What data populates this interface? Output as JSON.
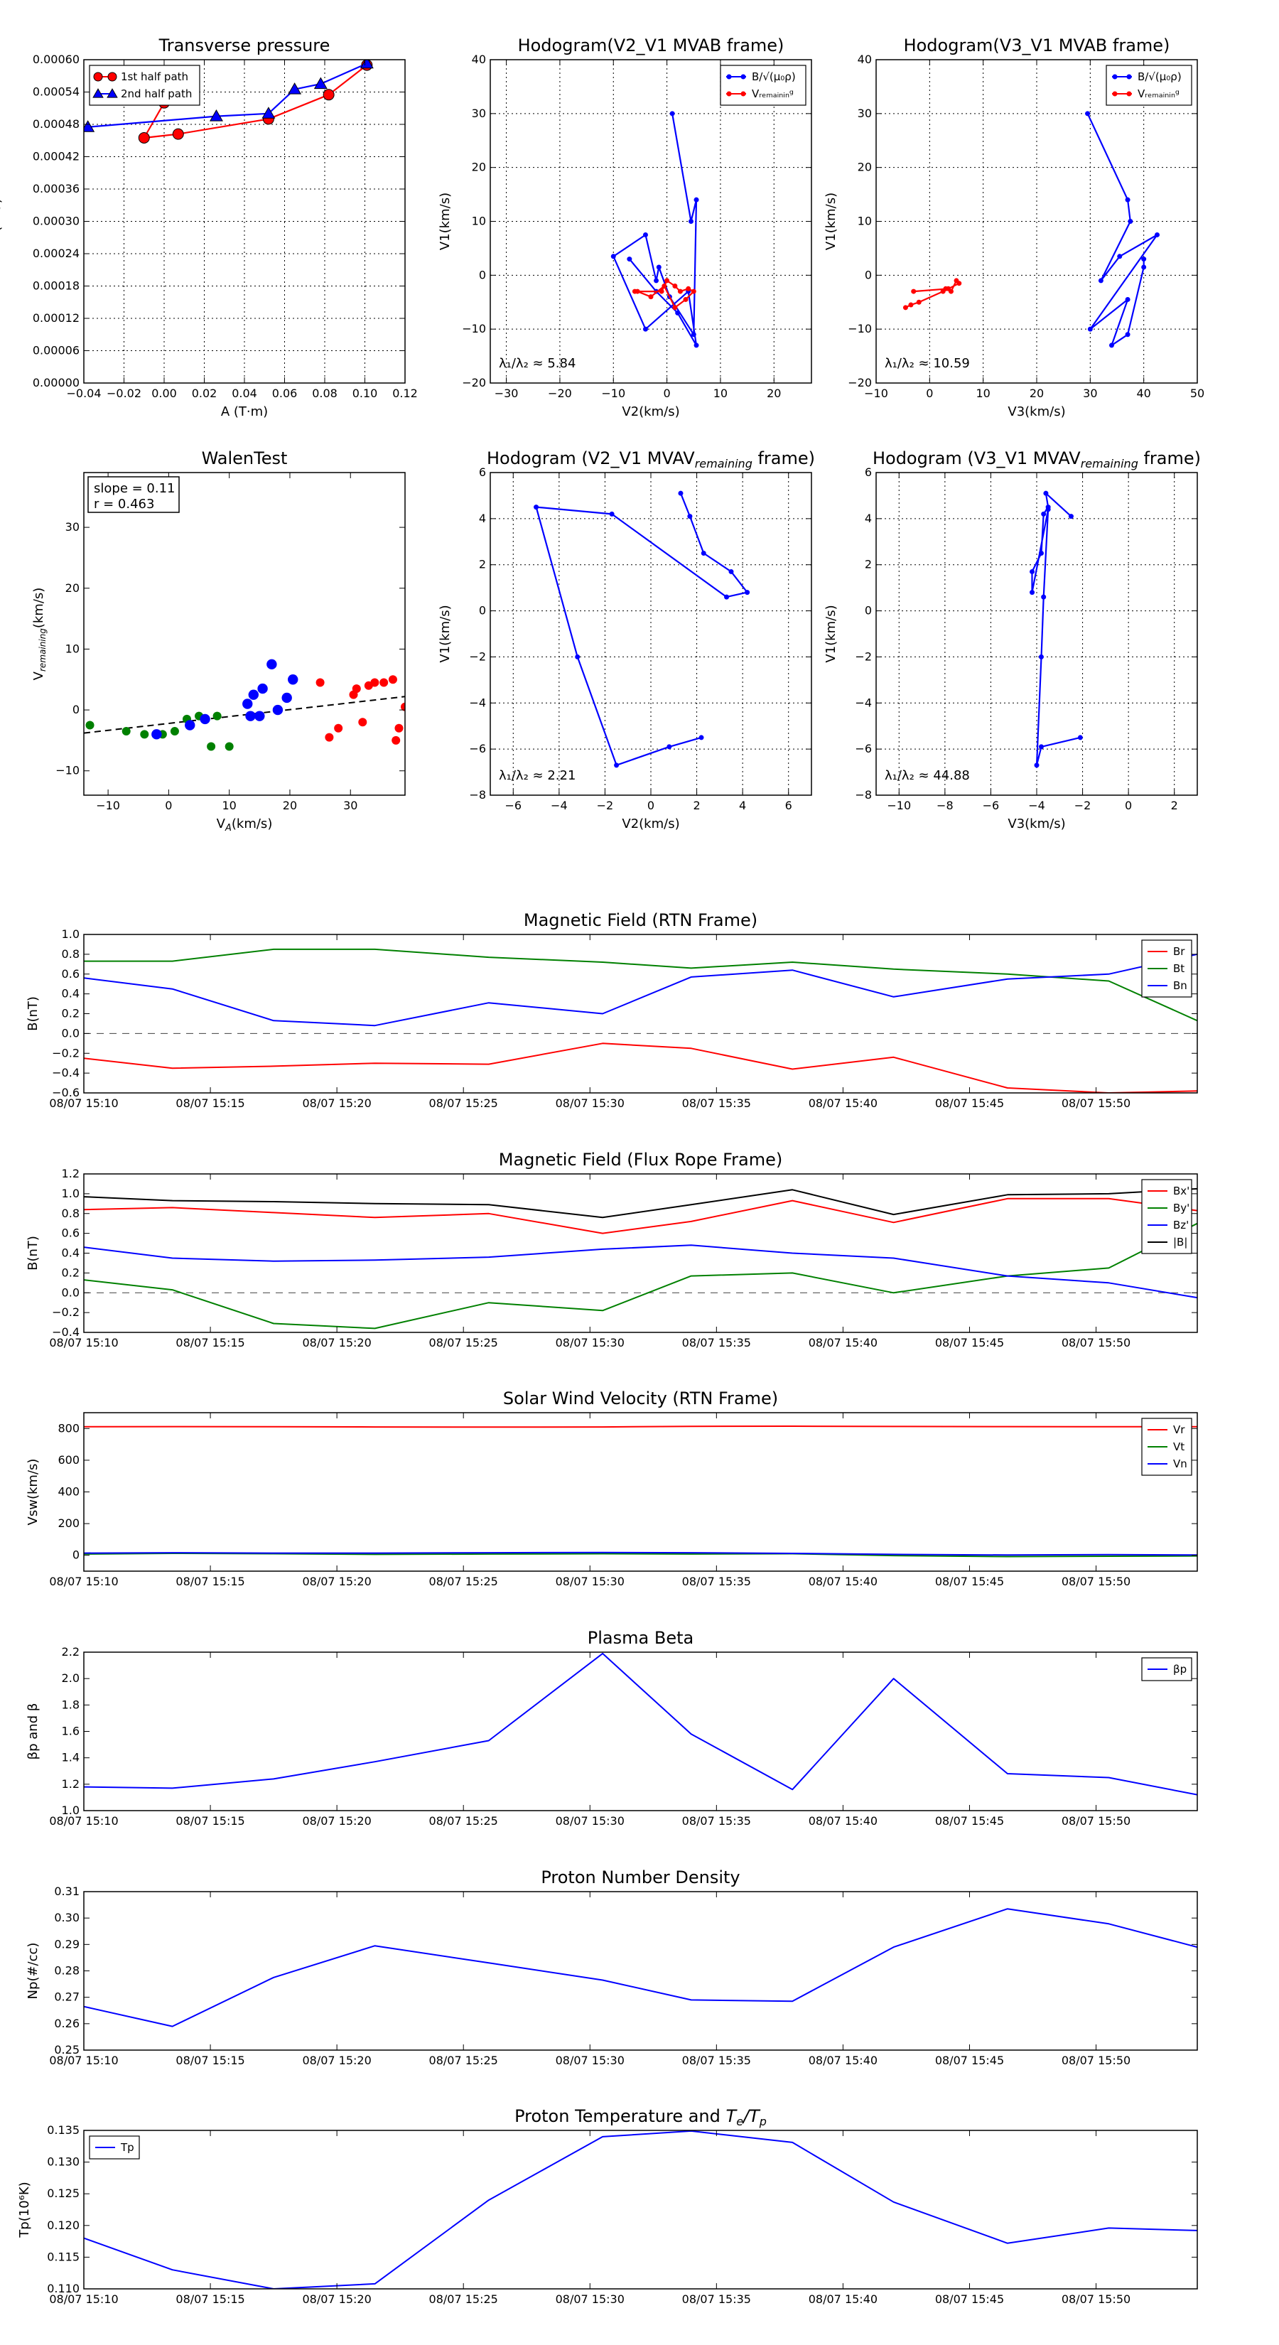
{
  "chart_data": [
    {
      "id": "transverse-pressure",
      "type": "line",
      "title": "Transverse pressure",
      "xlabel": "A (T·m)",
      "ylabel": "Pt(nPa)",
      "xlim": [
        -0.04,
        0.12
      ],
      "ylim": [
        0,
        0.0006
      ],
      "xticks": [
        -0.04,
        -0.02,
        0.0,
        0.02,
        0.04,
        0.06,
        0.08,
        0.1,
        0.12
      ],
      "xtick_labels": [
        "−0.04",
        "−0.02",
        "0.00",
        "0.02",
        "0.04",
        "0.06",
        "0.08",
        "0.10",
        "0.12"
      ],
      "yticks": [
        0,
        6e-05,
        0.00012,
        0.00018,
        0.00024,
        0.0003,
        0.00036,
        0.00042,
        0.00048,
        0.00054,
        0.0006
      ],
      "ytick_labels": [
        "0.00000",
        "0.00006",
        "0.00012",
        "0.00018",
        "0.00024",
        "0.00030",
        "0.00036",
        "0.00042",
        "0.00048",
        "0.00054",
        "0.00060"
      ],
      "grid": true,
      "legend": "top-left",
      "series": [
        {
          "name": "1st half path",
          "color": "#ff0000",
          "marker": "circle",
          "x": [
            0.0,
            -0.01,
            0.007,
            0.052,
            0.082,
            0.101
          ],
          "y": [
            0.00052,
            0.000455,
            0.000462,
            0.00049,
            0.000535,
            0.00059
          ]
        },
        {
          "name": "2nd half path",
          "color": "#0000ff",
          "marker": "triangle",
          "x": [
            0.101,
            0.078,
            0.065,
            0.052,
            0.026,
            -0.038
          ],
          "y": [
            0.000593,
            0.000555,
            0.000545,
            0.0005,
            0.000495,
            0.000475
          ]
        }
      ]
    },
    {
      "id": "hodogram-v2-v1-mvab",
      "type": "line",
      "title": "Hodogram(V2_V1 MVAB frame)",
      "xlabel": "V2(km/s)",
      "ylabel": "V1(km/s)",
      "xlim": [
        -33,
        27
      ],
      "ylim": [
        -20,
        40
      ],
      "xticks": [
        -30,
        -20,
        -10,
        0,
        10,
        20
      ],
      "xtick_labels": [
        "−30",
        "−20",
        "−10",
        "0",
        "10",
        "20"
      ],
      "yticks": [
        -20,
        -10,
        0,
        10,
        20,
        30,
        40
      ],
      "ytick_labels": [
        "−20",
        "−10",
        "0",
        "10",
        "20",
        "30",
        "40"
      ],
      "grid": true,
      "legend": "top-right",
      "annotation": "λ₁/λ₂ ≈ 5.84",
      "series": [
        {
          "name": "B/√(μ₀ρ)",
          "color": "#0000ff",
          "x": [
            1.0,
            4.5,
            5.5,
            5.0,
            0.5,
            -1.5,
            -2.0,
            -4.0,
            -10.0,
            -4.0,
            4.0,
            5.5,
            2.0,
            -2.0,
            -7.0
          ],
          "y": [
            30.0,
            10.0,
            14.0,
            -11.0,
            -4.0,
            1.5,
            -1.0,
            7.5,
            3.5,
            -10.0,
            -3.0,
            -13.0,
            -7.0,
            -3.0,
            3.0
          ]
        },
        {
          "name": "Vᵣₑₘₐᵢₙᵢₙᵍ",
          "color": "#ff0000",
          "x": [
            -6.0,
            -1.0,
            0.0,
            1.5,
            2.5,
            4.0,
            5.0,
            3.5,
            1.5,
            -0.5,
            -3.0,
            -5.5
          ],
          "y": [
            -3.0,
            -3.0,
            -1.0,
            -2.0,
            -3.0,
            -2.5,
            -3.0,
            -4.5,
            -6.0,
            -2.0,
            -4.0,
            -3.0
          ]
        }
      ]
    },
    {
      "id": "hodogram-v3-v1-mvab",
      "type": "line",
      "title": "Hodogram(V3_V1 MVAB frame)",
      "xlabel": "V3(km/s)",
      "ylabel": "V1(km/s)",
      "xlim": [
        -10,
        50
      ],
      "ylim": [
        -20,
        40
      ],
      "xticks": [
        -10,
        0,
        10,
        20,
        30,
        40,
        50
      ],
      "xtick_labels": [
        "−10",
        "0",
        "10",
        "20",
        "30",
        "40",
        "50"
      ],
      "yticks": [
        -20,
        -10,
        0,
        10,
        20,
        30,
        40
      ],
      "ytick_labels": [
        "−20",
        "−10",
        "0",
        "10",
        "20",
        "30",
        "40"
      ],
      "grid": true,
      "legend": "top-right",
      "annotation": "λ₁/λ₂ ≈ 10.59",
      "series": [
        {
          "name": "B/√(μ₀ρ)",
          "color": "#0000ff",
          "x": [
            29.5,
            37.0,
            37.5,
            32.0,
            35.5,
            42.5,
            30.0,
            37.0,
            34.0,
            37.0,
            40.0,
            40.0
          ],
          "y": [
            30.0,
            14.0,
            10.0,
            -1.0,
            3.5,
            7.5,
            -10.0,
            -4.5,
            -13.0,
            -11.0,
            1.5,
            3.0
          ]
        },
        {
          "name": "Vᵣₑₘₐᵢₙᵢₙᵍ",
          "color": "#ff0000",
          "x": [
            -4.5,
            -3.5,
            -2.0,
            2.5,
            3.0,
            4.0,
            5.0,
            5.5,
            3.5,
            -3.0
          ],
          "y": [
            -6.0,
            -5.5,
            -5.0,
            -3.0,
            -2.5,
            -3.0,
            -1.0,
            -1.5,
            -2.5,
            -3.0
          ]
        }
      ]
    },
    {
      "id": "walen-test",
      "type": "scatter",
      "title": "WalenTest",
      "xlabel": "V_A(km/s)",
      "ylabel": "V_remaining(km/s)",
      "xlim": [
        -14,
        39
      ],
      "ylim": [
        -14,
        39
      ],
      "xticks": [
        -10,
        0,
        10,
        20,
        30
      ],
      "xtick_labels": [
        "−10",
        "0",
        "10",
        "20",
        "30"
      ],
      "yticks": [
        -10,
        0,
        10,
        20,
        30
      ],
      "ytick_labels": [
        "−10",
        "0",
        "10",
        "20",
        "30"
      ],
      "grid": false,
      "legend": "top-left",
      "legend_text": [
        "slope = 0.11",
        "r = 0.463"
      ],
      "fit_line": {
        "x": [
          -14,
          39
        ],
        "y": [
          -3.8,
          2.2
        ]
      },
      "series": [
        {
          "color": "#008000",
          "x": [
            -13.0,
            -7.0,
            -4.0,
            -1.0,
            1.0,
            3.0,
            5.0,
            6.0,
            7.0,
            8.0,
            10.0
          ],
          "y": [
            -2.5,
            -3.5,
            -4.0,
            -4.0,
            -3.5,
            -1.5,
            -1.0,
            -1.5,
            -6.0,
            -1.0,
            -6.0
          ]
        },
        {
          "color": "#0000ff",
          "x": [
            -2.0,
            3.5,
            6.0,
            13.0,
            13.5,
            14.0,
            15.0,
            15.5,
            17.0,
            18.0,
            19.5,
            20.5
          ],
          "y": [
            -4.0,
            -2.5,
            -1.5,
            1.0,
            -1.0,
            2.5,
            -1.0,
            3.5,
            7.5,
            0.0,
            2.0,
            5.0
          ],
          "size_scale": 1.2
        },
        {
          "color": "#ff0000",
          "x": [
            25.0,
            26.5,
            28.0,
            30.5,
            31.0,
            32.0,
            33.0,
            34.0,
            35.5,
            37.0,
            37.5,
            38.0,
            39.0
          ],
          "y": [
            4.5,
            -4.5,
            -3.0,
            2.5,
            3.5,
            -2.0,
            4.0,
            4.5,
            4.5,
            5.0,
            -5.0,
            -3.0,
            0.5
          ]
        }
      ]
    },
    {
      "id": "hodogram-v2-v1-mvav",
      "type": "line",
      "title": "Hodogram (V2_V1 MVAV_remaining frame)",
      "xlabel": "V2(km/s)",
      "ylabel": "V1(km/s)",
      "xlim": [
        -7,
        7
      ],
      "ylim": [
        -8,
        6
      ],
      "xticks": [
        -6,
        -4,
        -2,
        0,
        2,
        4,
        6
      ],
      "xtick_labels": [
        "−6",
        "−4",
        "−2",
        "0",
        "2",
        "4",
        "6"
      ],
      "yticks": [
        -8,
        -6,
        -4,
        -2,
        0,
        2,
        4,
        6
      ],
      "ytick_labels": [
        "−8",
        "−6",
        "−4",
        "−2",
        "0",
        "2",
        "4",
        "6"
      ],
      "grid": true,
      "annotation": "λ₁/λ₂ ≈ 2.21",
      "series": [
        {
          "color": "#0000ff",
          "x": [
            1.3,
            1.7,
            2.3,
            3.5,
            4.2,
            3.3,
            -1.7,
            -5.0,
            -3.2,
            -1.5,
            0.8,
            2.2
          ],
          "y": [
            5.1,
            4.1,
            2.5,
            1.7,
            0.8,
            0.6,
            4.2,
            4.5,
            -2.0,
            -6.7,
            -5.9,
            -5.5
          ]
        }
      ]
    },
    {
      "id": "hodogram-v3-v1-mvav",
      "type": "line",
      "title": "Hodogram (V3_V1 MVAV_remaining frame)",
      "xlabel": "V3(km/s)",
      "ylabel": "V1(km/s)",
      "xlim": [
        -11,
        3
      ],
      "ylim": [
        -8,
        6
      ],
      "xticks": [
        -10,
        -8,
        -6,
        -4,
        -2,
        0,
        2
      ],
      "xtick_labels": [
        "−10",
        "−8",
        "−6",
        "−4",
        "−2",
        "0",
        "2"
      ],
      "yticks": [
        -8,
        -6,
        -4,
        -2,
        0,
        2,
        4,
        6
      ],
      "ytick_labels": [
        "−8",
        "−6",
        "−4",
        "−2",
        "0",
        "2",
        "4",
        "6"
      ],
      "grid": true,
      "annotation": "λ₁/λ₂ ≈ 44.88",
      "series": [
        {
          "color": "#0000ff",
          "x": [
            -2.5,
            -3.6,
            -3.5,
            -3.7,
            -3.8,
            -4.2,
            -4.2,
            -3.5,
            -3.7,
            -3.8,
            -4.0,
            -3.8,
            -2.1
          ],
          "y": [
            4.1,
            5.1,
            4.5,
            4.2,
            2.5,
            1.7,
            0.8,
            4.4,
            0.6,
            -2.0,
            -6.7,
            -5.9,
            -5.5
          ]
        }
      ]
    },
    {
      "id": "magnetic-field-rtn",
      "type": "line",
      "title": "Magnetic Field (RTN Frame)",
      "ylabel": "B(nT)",
      "ylim": [
        -0.6,
        1.0
      ],
      "yticks": [
        -0.6,
        -0.4,
        -0.2,
        0.0,
        0.2,
        0.4,
        0.6,
        0.8,
        1.0
      ],
      "ytick_labels": [
        "−0.6",
        "−0.4",
        "−0.2",
        "0.0",
        "0.2",
        "0.4",
        "0.6",
        "0.8",
        "1.0"
      ],
      "legend": "top-right",
      "zero_line": true,
      "series": [
        {
          "name": "Br",
          "color": "#ff0000",
          "y": [
            -0.25,
            -0.35,
            -0.33,
            -0.3,
            -0.31,
            -0.1,
            -0.15,
            -0.36,
            -0.24,
            -0.55,
            -0.6,
            -0.58
          ]
        },
        {
          "name": "Bt",
          "color": "#008000",
          "y": [
            0.73,
            0.73,
            0.85,
            0.85,
            0.77,
            0.72,
            0.66,
            0.72,
            0.65,
            0.6,
            0.53,
            0.13
          ]
        },
        {
          "name": "Bn",
          "color": "#0000ff",
          "y": [
            0.56,
            0.45,
            0.13,
            0.08,
            0.31,
            0.2,
            0.57,
            0.64,
            0.37,
            0.55,
            0.6,
            0.8
          ]
        }
      ]
    },
    {
      "id": "magnetic-field-flux-rope",
      "type": "line",
      "title": "Magnetic Field (Flux Rope Frame)",
      "ylabel": "B(nT)",
      "ylim": [
        -0.4,
        1.2
      ],
      "yticks": [
        -0.4,
        -0.2,
        0.0,
        0.2,
        0.4,
        0.6,
        0.8,
        1.0,
        1.2
      ],
      "ytick_labels": [
        "−0.4",
        "−0.2",
        "0.0",
        "0.2",
        "0.4",
        "0.6",
        "0.8",
        "1.0",
        "1.2"
      ],
      "legend": "top-right",
      "zero_line": true,
      "series": [
        {
          "name": "Bx'",
          "color": "#ff0000",
          "y": [
            0.84,
            0.86,
            0.81,
            0.76,
            0.8,
            0.6,
            0.72,
            0.93,
            0.71,
            0.95,
            0.95,
            0.83
          ]
        },
        {
          "name": "By'",
          "color": "#008000",
          "y": [
            0.13,
            0.03,
            -0.31,
            -0.36,
            -0.1,
            -0.18,
            0.17,
            0.2,
            0.0,
            0.17,
            0.25,
            0.7
          ]
        },
        {
          "name": "Bz'",
          "color": "#0000ff",
          "y": [
            0.46,
            0.35,
            0.32,
            0.33,
            0.36,
            0.44,
            0.48,
            0.4,
            0.35,
            0.17,
            0.1,
            -0.05
          ]
        },
        {
          "name": "|B|",
          "color": "#000000",
          "y": [
            0.97,
            0.93,
            0.92,
            0.9,
            0.89,
            0.76,
            0.89,
            1.04,
            0.79,
            0.99,
            1.0,
            1.05
          ]
        }
      ]
    },
    {
      "id": "solar-wind-velocity",
      "type": "line",
      "title": "Solar Wind Velocity (RTN Frame)",
      "ylabel": "Vsw(km/s)",
      "ylim": [
        -100,
        900
      ],
      "yticks": [
        0,
        200,
        400,
        600,
        800
      ],
      "ytick_labels": [
        "0",
        "200",
        "400",
        "600",
        "800"
      ],
      "legend": "top-right",
      "series": [
        {
          "name": "Vr",
          "color": "#ff0000",
          "y": [
            811,
            812,
            811,
            810,
            809,
            810,
            814,
            815,
            813,
            812,
            811,
            811
          ]
        },
        {
          "name": "Vt",
          "color": "#008000",
          "y": [
            8,
            12,
            10,
            6,
            8,
            10,
            8,
            10,
            -2,
            -8,
            -6,
            -4
          ]
        },
        {
          "name": "Vn",
          "color": "#0000ff",
          "y": [
            14,
            16,
            14,
            14,
            16,
            18,
            16,
            12,
            6,
            2,
            4,
            2
          ]
        }
      ]
    },
    {
      "id": "plasma-beta",
      "type": "line",
      "title": "Plasma Beta",
      "ylabel": "βp and β",
      "ylim": [
        1.0,
        2.2
      ],
      "yticks": [
        1.0,
        1.2,
        1.4,
        1.6,
        1.8,
        2.0,
        2.2
      ],
      "ytick_labels": [
        "1.0",
        "1.2",
        "1.4",
        "1.6",
        "1.8",
        "2.0",
        "2.2"
      ],
      "legend": "top-right",
      "series": [
        {
          "name": "βp",
          "color": "#0000ff",
          "y": [
            1.18,
            1.17,
            1.24,
            1.37,
            1.53,
            2.19,
            1.58,
            1.16,
            2.0,
            1.28,
            1.25,
            1.12
          ]
        }
      ]
    },
    {
      "id": "proton-number-density",
      "type": "line",
      "title": "Proton Number Density",
      "ylabel": "Np(#/cc)",
      "ylim": [
        0.25,
        0.31
      ],
      "yticks": [
        0.25,
        0.26,
        0.27,
        0.28,
        0.29,
        0.3,
        0.31
      ],
      "ytick_labels": [
        "0.25",
        "0.26",
        "0.27",
        "0.28",
        "0.29",
        "0.30",
        "0.31"
      ],
      "series": [
        {
          "color": "#0000ff",
          "y": [
            0.2665,
            0.259,
            0.2775,
            0.2895,
            0.283,
            0.2765,
            0.269,
            0.2685,
            0.289,
            0.3035,
            0.2978,
            0.289
          ]
        }
      ]
    },
    {
      "id": "proton-temperature",
      "type": "line",
      "title": "Proton Temperature and Te/Tp",
      "ylabel": "Tp(10⁶K)",
      "ylim": [
        0.11,
        0.135
      ],
      "yticks": [
        0.11,
        0.115,
        0.12,
        0.125,
        0.13,
        0.135
      ],
      "ytick_labels": [
        "0.110",
        "0.115",
        "0.120",
        "0.125",
        "0.130",
        "0.135"
      ],
      "legend": "top-left",
      "series": [
        {
          "name": "Tp",
          "color": "#0000ff",
          "y": [
            0.118,
            0.113,
            0.11,
            0.1108,
            0.124,
            0.134,
            0.1349,
            0.1331,
            0.1237,
            0.1172,
            0.1196,
            0.1192
          ]
        }
      ]
    }
  ],
  "time_axis": {
    "x": [
      0.0,
      3.5,
      7.5,
      11.5,
      16.0,
      20.5,
      24.0,
      28.0,
      32.0,
      36.5,
      40.5,
      44.0
    ],
    "xlim": [
      0,
      44
    ],
    "ticks": [
      0,
      5,
      10,
      15,
      20,
      25,
      30,
      35,
      40
    ],
    "labels": [
      "08/07 15:10",
      "08/07 15:15",
      "08/07 15:20",
      "08/07 15:25",
      "08/07 15:30",
      "08/07 15:35",
      "08/07 15:40",
      "08/07 15:45",
      "08/07 15:50"
    ]
  }
}
